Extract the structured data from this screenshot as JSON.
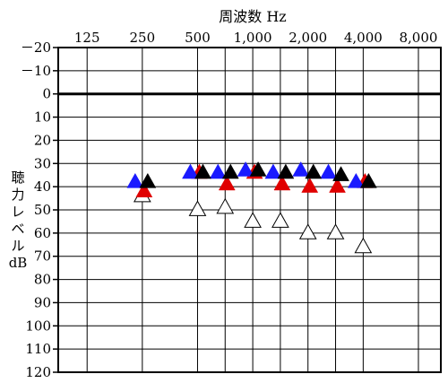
{
  "chart_data": {
    "type": "scatter",
    "title": "周波数 Hz",
    "ylabel": [
      "聴",
      "力",
      "レ",
      "ベ",
      "ル",
      "dB"
    ],
    "x_scale": "log",
    "y_inverted": true,
    "x_tick_labels": [
      "125",
      "250",
      "500",
      "1,000",
      "2,000",
      "4,000",
      "8,000"
    ],
    "x_ticks": [
      125,
      250,
      500,
      1000,
      2000,
      4000,
      8000
    ],
    "x_gridlines": [
      125,
      250,
      500,
      707,
      1000,
      1414,
      2000,
      2828,
      4000,
      8000
    ],
    "y_tick_labels": [
      "－20",
      "－10",
      "0",
      "10",
      "20",
      "30",
      "40",
      "50",
      "60",
      "70",
      "80",
      "90",
      "100",
      "110",
      "120"
    ],
    "y_ticks": [
      -20,
      -10,
      0,
      10,
      20,
      30,
      40,
      50,
      60,
      70,
      80,
      90,
      100,
      110,
      120
    ],
    "ylim": [
      -20,
      120
    ],
    "xlim": [
      87,
      10600
    ],
    "zero_line": 0,
    "grid": true,
    "legend": "none",
    "series": [
      {
        "color": "#ffffff",
        "marker": "triangle-open",
        "points": [
          [
            250,
            44
          ],
          [
            500,
            50
          ],
          [
            707,
            49
          ],
          [
            1000,
            55
          ],
          [
            1414,
            55
          ],
          [
            2000,
            60
          ],
          [
            2828,
            60
          ],
          [
            4000,
            66
          ]
        ]
      },
      {
        "color": "#e00000",
        "marker": "triangle-filled",
        "points": [
          [
            250,
            42
          ],
          [
            500,
            34
          ],
          [
            707,
            39
          ],
          [
            1000,
            34
          ],
          [
            1414,
            39
          ],
          [
            2000,
            40
          ],
          [
            2828,
            40
          ],
          [
            4000,
            38
          ]
        ]
      },
      {
        "color": "#1a1aff",
        "marker": "triangle-filled",
        "points": [
          [
            250,
            38
          ],
          [
            500,
            34
          ],
          [
            707,
            34
          ],
          [
            1000,
            33
          ],
          [
            1414,
            34
          ],
          [
            2000,
            33
          ],
          [
            2828,
            34
          ],
          [
            4000,
            38
          ]
        ]
      },
      {
        "color": "#000000",
        "marker": "triangle-filled",
        "points": [
          [
            250,
            38
          ],
          [
            500,
            34
          ],
          [
            707,
            34
          ],
          [
            1000,
            33
          ],
          [
            1414,
            34
          ],
          [
            2000,
            34
          ],
          [
            2828,
            35
          ],
          [
            4000,
            38
          ]
        ]
      }
    ]
  }
}
